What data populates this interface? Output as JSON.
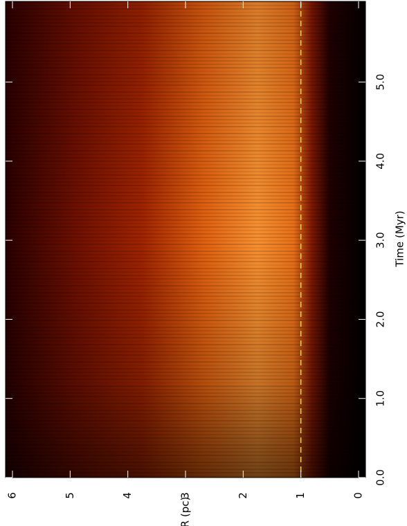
{
  "chart_data": {
    "type": "heatmap",
    "xlabel": "Time (Myr)",
    "ylabel": "R (pc)",
    "xlim": [
      0,
      6.02
    ],
    "xticks": [
      {
        "value": 0,
        "label": "0.0"
      },
      {
        "value": 1,
        "label": "1.0"
      },
      {
        "value": 2,
        "label": "2.0"
      },
      {
        "value": 3,
        "label": "3.0"
      },
      {
        "value": 4,
        "label": "4.0"
      },
      {
        "value": 5,
        "label": "5.0"
      }
    ],
    "ylim": [
      -0.12,
      6.12
    ],
    "yticks": [
      0,
      1,
      2,
      3,
      4,
      5,
      6
    ],
    "reference_line": 1,
    "reference_color": "#f0d060"
  }
}
